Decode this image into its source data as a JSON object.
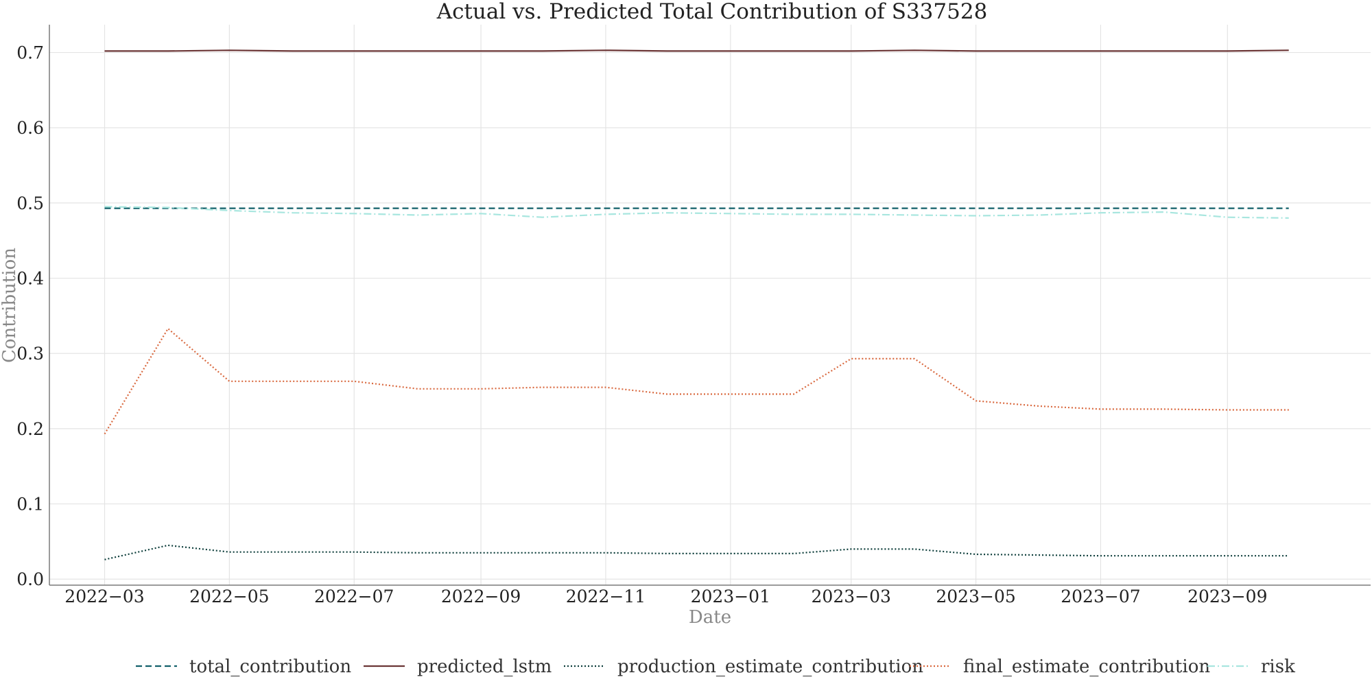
{
  "chart_data": {
    "type": "line",
    "title": "Actual vs. Predicted Total Contribution of S337528",
    "xlabel": "Date",
    "ylabel": "Contribution",
    "x": [
      "2022-03",
      "2022-04",
      "2022-05",
      "2022-06",
      "2022-07",
      "2022-08",
      "2022-09",
      "2022-10",
      "2022-11",
      "2022-12",
      "2023-01",
      "2023-02",
      "2023-03",
      "2023-04",
      "2023-05",
      "2023-06",
      "2023-07",
      "2023-08",
      "2023-09",
      "2023-10"
    ],
    "x_ticks": [
      "2022−03",
      "2022−05",
      "2022−07",
      "2022−09",
      "2022−11",
      "2023−01",
      "2023−03",
      "2023−05",
      "2023−07",
      "2023−09"
    ],
    "y_ticks": [
      "0.0",
      "0.1",
      "0.2",
      "0.3",
      "0.4",
      "0.5",
      "0.6",
      "0.7"
    ],
    "ylim": [
      -0.008,
      0.737
    ],
    "xlim": [
      "2022-02-02",
      "2023-11-10"
    ],
    "grid": true,
    "legend_position": "bottom",
    "series": [
      {
        "name": "total_contribution",
        "color": "#12606a",
        "dash": "dashed",
        "values": [
          0.493,
          0.493,
          0.493,
          0.493,
          0.493,
          0.493,
          0.493,
          0.493,
          0.493,
          0.493,
          0.493,
          0.493,
          0.493,
          0.493,
          0.493,
          0.493,
          0.493,
          0.493,
          0.493,
          0.493
        ]
      },
      {
        "name": "predicted_lstm",
        "color": "#6b3535",
        "dash": "solid",
        "values": [
          0.702,
          0.702,
          0.703,
          0.702,
          0.702,
          0.702,
          0.702,
          0.702,
          0.703,
          0.702,
          0.702,
          0.702,
          0.702,
          0.703,
          0.702,
          0.702,
          0.702,
          0.702,
          0.702,
          0.703
        ]
      },
      {
        "name": "production_estimate_contribution",
        "color": "#0c3d3a",
        "dash": "dotted",
        "values": [
          0.026,
          0.045,
          0.036,
          0.036,
          0.036,
          0.035,
          0.035,
          0.035,
          0.035,
          0.034,
          0.034,
          0.034,
          0.04,
          0.04,
          0.033,
          0.032,
          0.031,
          0.031,
          0.031,
          0.031
        ]
      },
      {
        "name": "final_estimate_contribution",
        "color": "#d9693f",
        "dash": "dotted",
        "values": [
          0.193,
          0.333,
          0.263,
          0.263,
          0.263,
          0.253,
          0.253,
          0.255,
          0.255,
          0.246,
          0.246,
          0.246,
          0.293,
          0.293,
          0.237,
          0.23,
          0.226,
          0.226,
          0.225,
          0.225
        ]
      },
      {
        "name": "risk",
        "color": "#a8e6df",
        "dash": "dashdot",
        "values": [
          0.495,
          0.494,
          0.49,
          0.487,
          0.486,
          0.484,
          0.486,
          0.481,
          0.485,
          0.487,
          0.486,
          0.485,
          0.485,
          0.484,
          0.483,
          0.484,
          0.487,
          0.488,
          0.481,
          0.48
        ]
      }
    ]
  }
}
